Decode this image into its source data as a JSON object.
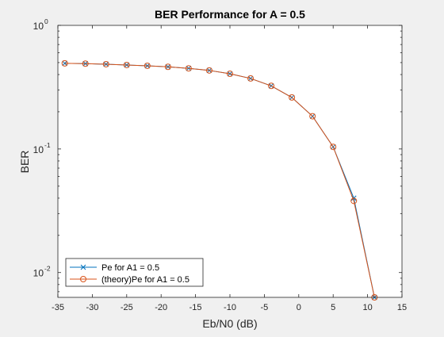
{
  "chart_data": {
    "type": "line",
    "title": "BER Performance for A = 0.5",
    "xlabel": "Eb/N0 (dB)",
    "ylabel": "BER",
    "xlim": [
      -35,
      15
    ],
    "ylim": [
      0.0063,
      1
    ],
    "yscale": "log",
    "xticks": [
      -35,
      -30,
      -25,
      -20,
      -15,
      -10,
      -5,
      0,
      5,
      10,
      15
    ],
    "xtick_labels": [
      "-35",
      "-30",
      "-25",
      "-20",
      "-15",
      "-10",
      "-5",
      "0",
      "5",
      "10",
      "15"
    ],
    "yticks": [
      0.01,
      0.1,
      1
    ],
    "ytick_labels": [
      {
        "base": "10",
        "exp": "-2"
      },
      {
        "base": "10",
        "exp": "-1"
      },
      {
        "base": "10",
        "exp": "0"
      }
    ],
    "grid": false,
    "legend_position": "bottom-left",
    "x": [
      -34,
      -31,
      -28,
      -25,
      -22,
      -19,
      -16,
      -13,
      -10,
      -7,
      -4,
      -1,
      2,
      5,
      8,
      11
    ],
    "series": [
      {
        "name": "Pe for A1 = 0.5",
        "color": "#0072BD",
        "marker": "x",
        "values": [
          0.493,
          0.49,
          0.485,
          0.478,
          0.471,
          0.462,
          0.449,
          0.432,
          0.406,
          0.372,
          0.324,
          0.261,
          0.184,
          0.104,
          0.04,
          0.0063
        ]
      },
      {
        "name": "(theory)Pe for A1 = 0.5",
        "color": "#D95319",
        "marker": "o",
        "values": [
          0.493,
          0.49,
          0.485,
          0.478,
          0.471,
          0.462,
          0.449,
          0.432,
          0.406,
          0.372,
          0.324,
          0.261,
          0.184,
          0.104,
          0.038,
          0.0063
        ]
      }
    ]
  }
}
